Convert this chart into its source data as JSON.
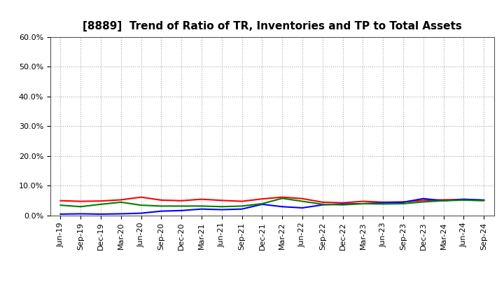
{
  "title": "[8889]  Trend of Ratio of TR, Inventories and TP to Total Assets",
  "x_labels": [
    "Jun-19",
    "Sep-19",
    "Dec-19",
    "Mar-20",
    "Jun-20",
    "Sep-20",
    "Dec-20",
    "Mar-21",
    "Jun-21",
    "Sep-21",
    "Dec-21",
    "Mar-22",
    "Jun-22",
    "Sep-22",
    "Dec-22",
    "Mar-23",
    "Jun-23",
    "Sep-23",
    "Dec-23",
    "Mar-24",
    "Jun-24",
    "Sep-24"
  ],
  "trade_receivables": [
    5.0,
    4.8,
    4.9,
    5.3,
    6.2,
    5.2,
    5.0,
    5.5,
    5.1,
    4.8,
    5.6,
    6.2,
    5.7,
    4.5,
    4.3,
    4.8,
    4.5,
    4.6,
    5.1,
    5.3,
    5.4,
    5.2
  ],
  "inventories": [
    0.5,
    0.6,
    0.5,
    0.6,
    0.8,
    1.5,
    1.7,
    2.2,
    2.0,
    2.2,
    3.8,
    3.0,
    2.6,
    3.6,
    3.9,
    4.0,
    4.3,
    4.5,
    5.7,
    5.0,
    5.5,
    5.2
  ],
  "trade_payables": [
    3.5,
    3.0,
    3.8,
    4.5,
    3.5,
    3.2,
    3.2,
    3.2,
    3.0,
    3.2,
    4.0,
    5.8,
    4.8,
    3.8,
    3.6,
    4.0,
    3.9,
    4.0,
    4.6,
    5.0,
    5.2,
    5.0
  ],
  "tr_color": "#ff0000",
  "inv_color": "#0000ff",
  "tp_color": "#008000",
  "ylim": [
    0,
    60
  ],
  "yticks": [
    0,
    10,
    20,
    30,
    40,
    50,
    60
  ],
  "ytick_labels": [
    "0.0%",
    "10.0%",
    "20.0%",
    "30.0%",
    "40.0%",
    "50.0%",
    "60.0%"
  ],
  "background_color": "#ffffff",
  "plot_bg_color": "#ffffff",
  "grid_color": "#aaaaaa",
  "title_fontsize": 11,
  "tick_fontsize": 8,
  "legend_fontsize": 9
}
